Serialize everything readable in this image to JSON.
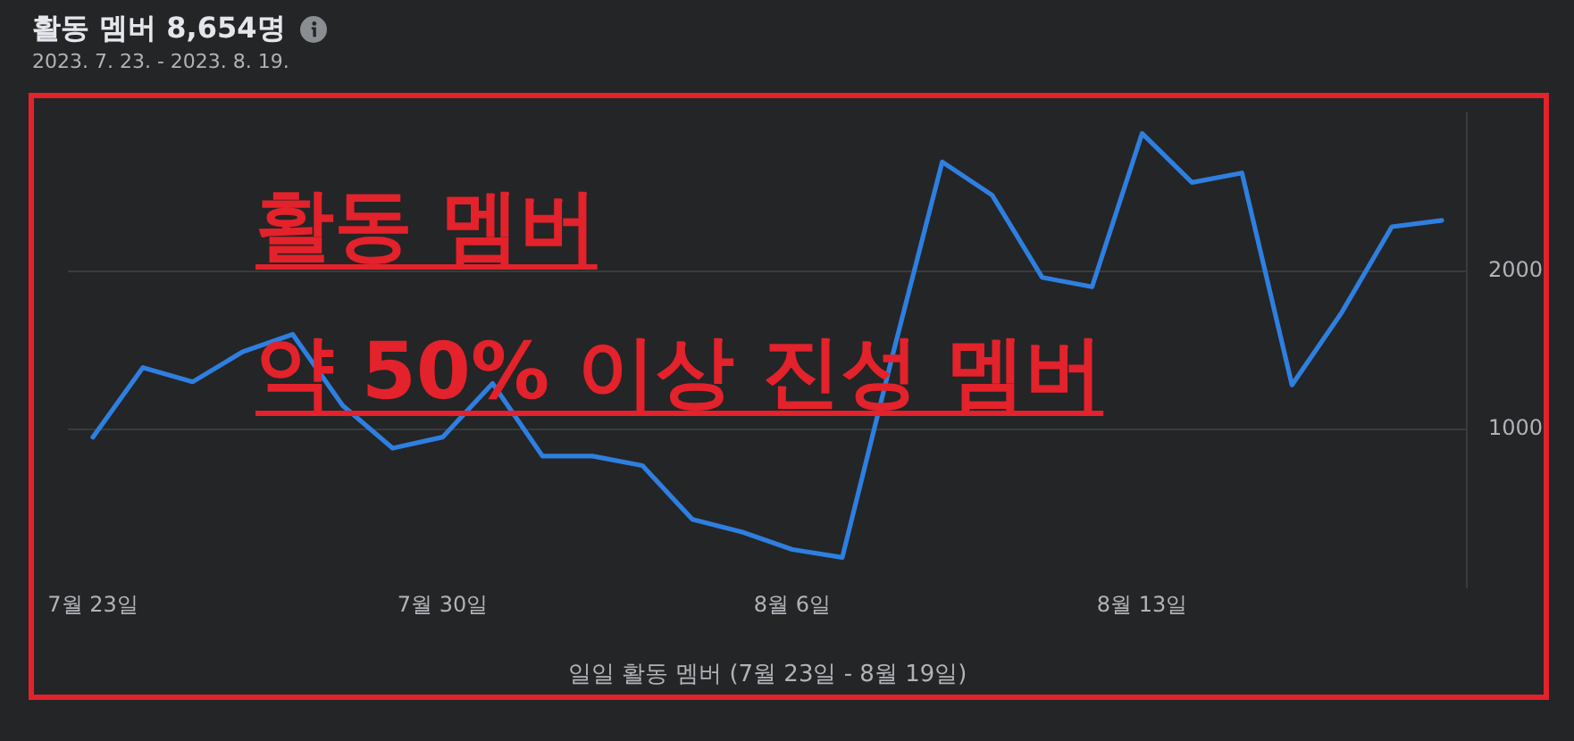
{
  "chart_data": {
    "type": "line",
    "title": "활동 멤버 8,654명",
    "subtitle": "2023. 7. 23. - 2023. 8. 19.",
    "xlabel": "일일 활동 멤버 (7월 23일 - 8월 19일)",
    "annotations": [
      "활동 멤버",
      "약 50% 이상 진성 멤버"
    ],
    "categories": [
      "7월 23일",
      null,
      null,
      null,
      null,
      null,
      null,
      "7월 30일",
      null,
      null,
      null,
      null,
      null,
      null,
      "8월 6일",
      null,
      null,
      null,
      null,
      null,
      null,
      "8월 13일",
      null,
      null,
      null,
      null,
      null,
      null
    ],
    "series": [
      {
        "color": "#2e7fe0",
        "values": [
          950,
          1390,
          1300,
          1490,
          1600,
          1150,
          880,
          950,
          1290,
          830,
          830,
          770,
          430,
          350,
          240,
          190,
          1460,
          2690,
          2480,
          1960,
          1900,
          2870,
          2560,
          2620,
          1280,
          1740,
          2280,
          2320
        ]
      }
    ],
    "ylim": [
      0,
      3000
    ],
    "yticks": [
      1000,
      2000
    ],
    "grid": "y",
    "marker": "none",
    "line_style": "solid"
  }
}
